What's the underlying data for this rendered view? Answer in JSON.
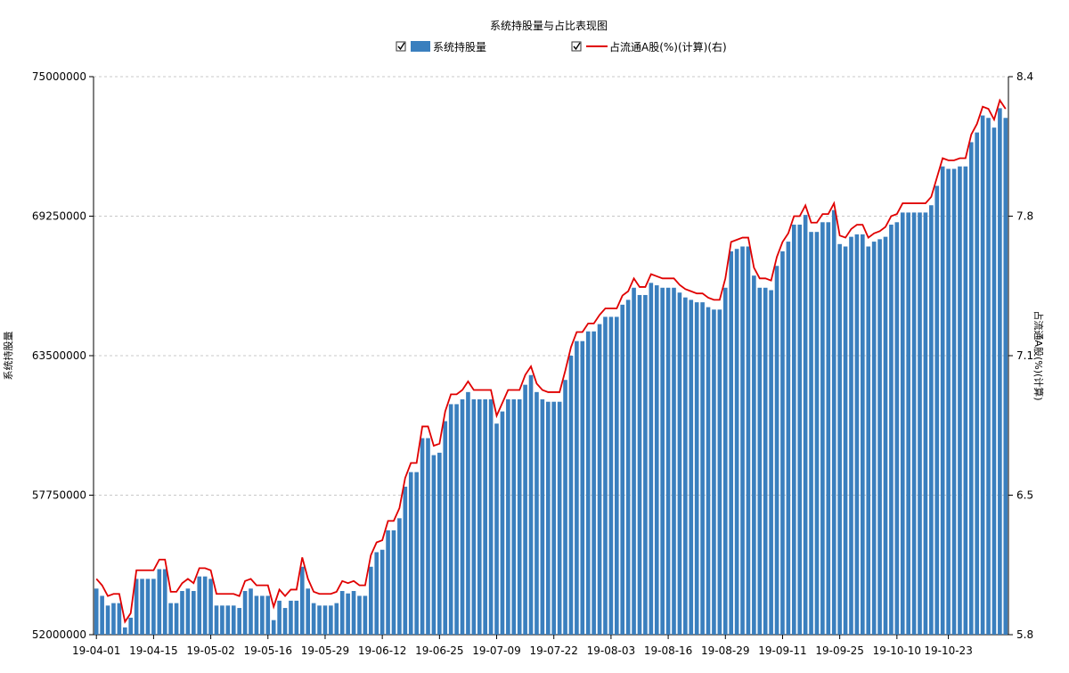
{
  "chart_data": {
    "type": "bar+line",
    "title": "系统持股量与占比表现图",
    "legend": [
      {
        "name": "系统持股量",
        "color": "#3a7fbe",
        "checked": true
      },
      {
        "name": "占流通A股(%)(计算)(右)",
        "color": "#e00000",
        "checked": true
      }
    ],
    "y_left": {
      "label": "系统持股量",
      "ylim": [
        52000000,
        75000000
      ],
      "ticks": [
        "75000000",
        "69250000",
        "63500000",
        "57750000",
        "52000000"
      ]
    },
    "y_right": {
      "label": "占流通A股(%)(计算)",
      "ylim": [
        5.8,
        8.4
      ],
      "ticks": [
        "8.4",
        "7.8",
        "7.1",
        "6.5",
        "5.8"
      ]
    },
    "x_ticks": [
      "19-04-01",
      "19-04-15",
      "19-05-02",
      "19-05-16",
      "19-05-29",
      "19-06-12",
      "19-06-25",
      "19-07-09",
      "19-07-22",
      "19-08-03",
      "19-08-16",
      "19-08-29",
      "19-09-11",
      "19-09-25",
      "19-10-10",
      "19-10-23"
    ],
    "x_tick_positions": [
      0,
      10,
      20,
      30,
      40,
      50,
      60,
      70,
      80,
      90,
      100,
      110,
      120,
      130,
      140,
      149
    ],
    "bar_values": [
      53900000,
      53600000,
      53200000,
      53300000,
      53300000,
      52300000,
      52700000,
      54300000,
      54300000,
      54300000,
      54300000,
      54700000,
      54700000,
      53300000,
      53300000,
      53800000,
      53900000,
      53800000,
      54400000,
      54400000,
      54300000,
      53200000,
      53200000,
      53200000,
      53200000,
      53100000,
      53800000,
      53900000,
      53600000,
      53600000,
      53600000,
      52600000,
      53400000,
      53100000,
      53400000,
      53400000,
      54800000,
      53900000,
      53300000,
      53200000,
      53200000,
      53200000,
      53300000,
      53800000,
      53700000,
      53800000,
      53600000,
      53600000,
      54800000,
      55400000,
      55500000,
      56300000,
      56300000,
      56800000,
      58100000,
      58700000,
      58700000,
      60100000,
      60100000,
      59400000,
      59500000,
      60800000,
      61500000,
      61500000,
      61700000,
      62000000,
      61700000,
      61700000,
      61700000,
      61700000,
      60700000,
      61200000,
      61700000,
      61700000,
      61700000,
      62300000,
      62700000,
      62000000,
      61700000,
      61600000,
      61600000,
      61600000,
      62500000,
      63500000,
      64100000,
      64100000,
      64500000,
      64500000,
      64800000,
      65100000,
      65100000,
      65100000,
      65600000,
      65800000,
      66300000,
      66000000,
      66000000,
      66500000,
      66400000,
      66300000,
      66300000,
      66300000,
      66100000,
      65900000,
      65800000,
      65700000,
      65700000,
      65500000,
      65400000,
      65400000,
      66300000,
      67800000,
      67900000,
      68000000,
      68000000,
      66800000,
      66300000,
      66300000,
      66200000,
      67200000,
      67800000,
      68200000,
      68900000,
      68900000,
      69300000,
      68600000,
      68600000,
      69000000,
      69000000,
      69500000,
      68100000,
      68000000,
      68400000,
      68500000,
      68500000,
      68000000,
      68200000,
      68300000,
      68400000,
      68900000,
      69000000,
      69400000,
      69400000,
      69400000,
      69400000,
      69400000,
      69700000,
      70500000,
      71300000,
      71200000,
      71200000,
      71300000,
      71300000,
      72300000,
      72700000,
      73400000,
      73300000,
      72900000,
      73700000,
      73300000
    ],
    "line_values": [
      6.06,
      6.03,
      5.98,
      5.99,
      5.99,
      5.86,
      5.9,
      6.1,
      6.1,
      6.1,
      6.1,
      6.15,
      6.15,
      6.0,
      6.0,
      6.04,
      6.06,
      6.04,
      6.11,
      6.11,
      6.1,
      5.99,
      5.99,
      5.99,
      5.99,
      5.98,
      6.05,
      6.06,
      6.03,
      6.03,
      6.03,
      5.93,
      6.01,
      5.98,
      6.01,
      6.01,
      6.16,
      6.06,
      6.0,
      5.99,
      5.99,
      5.99,
      6.0,
      6.05,
      6.04,
      6.05,
      6.03,
      6.03,
      6.17,
      6.23,
      6.24,
      6.33,
      6.33,
      6.39,
      6.53,
      6.6,
      6.6,
      6.77,
      6.77,
      6.68,
      6.69,
      6.84,
      6.92,
      6.92,
      6.94,
      6.98,
      6.94,
      6.94,
      6.94,
      6.94,
      6.82,
      6.88,
      6.94,
      6.94,
      6.94,
      7.01,
      7.05,
      6.97,
      6.94,
      6.93,
      6.93,
      6.93,
      7.03,
      7.14,
      7.21,
      7.21,
      7.25,
      7.25,
      7.29,
      7.32,
      7.32,
      7.32,
      7.38,
      7.4,
      7.46,
      7.42,
      7.42,
      7.48,
      7.47,
      7.46,
      7.46,
      7.46,
      7.43,
      7.41,
      7.4,
      7.39,
      7.39,
      7.37,
      7.36,
      7.36,
      7.46,
      7.63,
      7.64,
      7.65,
      7.65,
      7.51,
      7.46,
      7.46,
      7.45,
      7.56,
      7.63,
      7.67,
      7.75,
      7.75,
      7.8,
      7.72,
      7.72,
      7.76,
      7.76,
      7.81,
      7.66,
      7.65,
      7.69,
      7.71,
      7.71,
      7.65,
      7.67,
      7.68,
      7.7,
      7.75,
      7.76,
      7.81,
      7.81,
      7.81,
      7.81,
      7.81,
      7.84,
      7.93,
      8.02,
      8.01,
      8.01,
      8.02,
      8.02,
      8.13,
      8.18,
      8.26,
      8.25,
      8.2,
      8.29,
      8.25
    ],
    "grid": "horizontal dashed"
  }
}
